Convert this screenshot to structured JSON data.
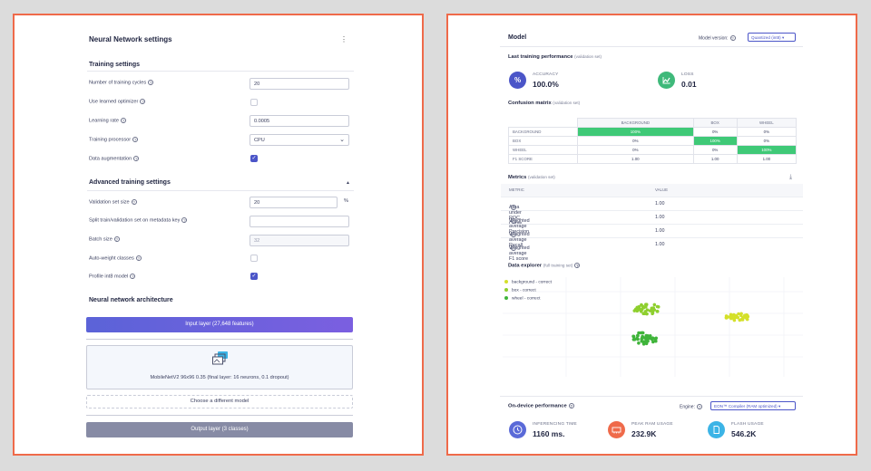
{
  "left": {
    "title": "Neural Network settings",
    "menu_glyph": "⋮",
    "training": {
      "heading": "Training settings",
      "cycles_label": "Number of training cycles",
      "cycles_value": "20",
      "optimizer_label": "Use learned optimizer",
      "lr_label": "Learning rate",
      "lr_value": "0.0005",
      "processor_label": "Training processor",
      "processor_value": "CPU",
      "augmentation_label": "Data augmentation"
    },
    "advanced": {
      "heading": "Advanced training settings",
      "collapse_glyph": "▲",
      "val_size_label": "Validation set size",
      "val_size_value": "20",
      "val_size_unit": "%",
      "split_label": "Split train/validation set on metadata key",
      "split_value": "",
      "batch_label": "Batch size",
      "batch_value": "32",
      "autoweight_label": "Auto-weight classes",
      "profile_label": "Profile int8 model"
    },
    "arch": {
      "heading": "Neural network architecture",
      "input_layer": "Input layer (27,648 features)",
      "model_desc": "MobileNetV2 96x96 0.35 (final layer: 16 neurons, 0.1 dropout)",
      "choose_model": "Choose a different model",
      "output_layer": "Output layer (3 classes)"
    }
  },
  "right": {
    "title": "Model",
    "version_label": "Model version:",
    "version_value": "Quantized (int8)",
    "perf": {
      "heading": "Last training performance",
      "heading_note": "(validation set)",
      "accuracy_label": "ACCURACY",
      "accuracy_value": "100.0%",
      "loss_label": "LOSS",
      "loss_value": "0.01"
    },
    "confusion": {
      "heading": "Confusion matrix",
      "heading_note": "(validation set)",
      "columns": [
        "BACKGROUND",
        "BOX",
        "WHEEL"
      ],
      "rows": [
        {
          "label": "BACKGROUND",
          "cells": [
            "100%",
            "0%",
            "0%"
          ]
        },
        {
          "label": "BOX",
          "cells": [
            "0%",
            "100%",
            "0%"
          ]
        },
        {
          "label": "WHEEL",
          "cells": [
            "0%",
            "0%",
            "100%"
          ]
        },
        {
          "label": "F1 SCORE",
          "cells": [
            "1.00",
            "1.00",
            "1.00"
          ]
        }
      ]
    },
    "metrics": {
      "heading": "Metrics",
      "heading_note": "(validation set)",
      "col_metric": "METRIC",
      "col_value": "VALUE",
      "rows": [
        {
          "name": "Area under ROC Curve",
          "value": "1.00"
        },
        {
          "name": "Weighted average Precision",
          "value": "1.00"
        },
        {
          "name": "Weighted average Recall",
          "value": "1.00"
        },
        {
          "name": "Weighted average F1 score",
          "value": "1.00"
        }
      ]
    },
    "explorer": {
      "heading": "Data explorer",
      "heading_note": "(full training set)",
      "legend": [
        {
          "label": "background - correct",
          "color": "#d4e02a"
        },
        {
          "label": "box - correct",
          "color": "#8ecf2e"
        },
        {
          "label": "wheel - correct",
          "color": "#3fb43a"
        }
      ]
    },
    "device": {
      "heading": "On-device performance",
      "engine_label": "Engine:",
      "engine_value": "EON™ Compiler (RAM optimized)",
      "inference_label": "INFERENCING TIME",
      "inference_value": "1160 ms.",
      "ram_label": "PEAK RAM USAGE",
      "ram_value": "232.9K",
      "flash_label": "FLASH USAGE",
      "flash_value": "546.2K"
    },
    "colors": {
      "accent": "#4b55c8",
      "success": "#3fc977",
      "accuracy_icon": "#4b55c8",
      "loss_icon": "#3fb97a",
      "time_icon": "#5a6ad8",
      "ram_icon": "#ef6a4a",
      "flash_icon": "#3cb4e6"
    }
  }
}
